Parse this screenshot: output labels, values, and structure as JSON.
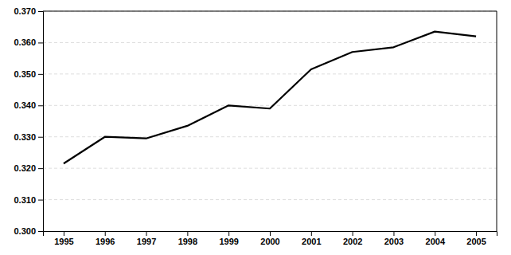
{
  "chart_data": {
    "type": "line",
    "x": [
      1995,
      1996,
      1997,
      1998,
      1999,
      2000,
      2001,
      2002,
      2003,
      2004,
      2005
    ],
    "values": [
      0.3215,
      0.33,
      0.3295,
      0.3335,
      0.34,
      0.339,
      0.3515,
      0.357,
      0.3585,
      0.3635,
      0.362
    ],
    "color": "#000000",
    "xlim": [
      1994.5,
      2005.5
    ],
    "xticks": [
      1995,
      1996,
      1997,
      1998,
      1999,
      2000,
      2001,
      2002,
      2003,
      2004,
      2005
    ],
    "ylim": [
      0.3,
      0.37
    ],
    "yticks": [
      {
        "value": 0.3,
        "label": "0.300"
      },
      {
        "value": 0.31,
        "label": "0.310"
      },
      {
        "value": 0.32,
        "label": "0.320"
      },
      {
        "value": 0.33,
        "label": "0.330"
      },
      {
        "value": 0.34,
        "label": "0.340"
      },
      {
        "value": 0.35,
        "label": "0.350"
      },
      {
        "value": 0.36,
        "label": "0.360"
      },
      {
        "value": 0.37,
        "label": "0.370"
      }
    ],
    "grid": "y"
  }
}
